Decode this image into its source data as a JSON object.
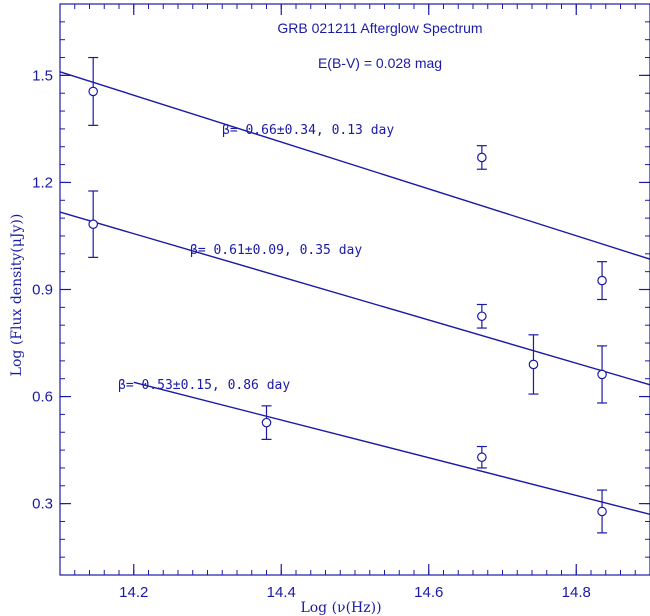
{
  "chart_data": {
    "type": "scatter",
    "title": "",
    "annotations": [
      "GRB 021211 Afterglow Spectrum",
      "E(B-V) = 0.028 mag"
    ],
    "xlabel": "Log (ν(Hz))",
    "ylabel": "Log (Flux density(μJy))",
    "xlim": [
      14.1,
      14.9
    ],
    "ylim": [
      0.1,
      1.7
    ],
    "x_ticks": [
      "14.2",
      "14.4",
      "14.6",
      "14.8"
    ],
    "y_ticks": [
      "0.3",
      "0.6",
      "0.9",
      "1.2",
      "1.5"
    ],
    "grid": false,
    "series": [
      {
        "points": [
          {
            "x": 14.145,
            "y": 1.455,
            "err": 0.095
          },
          {
            "x": 14.672,
            "y": 1.27,
            "err": 0.033
          },
          {
            "x": 14.835,
            "y": 0.925,
            "err": 0.053
          }
        ],
        "fit": {
          "x": [
            14.1,
            14.9
          ],
          "y": [
            1.51,
            0.985
          ]
        },
        "label": "β=  0.66±0.34,  0.13  day"
      },
      {
        "points": [
          {
            "x": 14.145,
            "y": 1.083,
            "err": 0.093
          },
          {
            "x": 14.672,
            "y": 0.825,
            "err": 0.033
          },
          {
            "x": 14.742,
            "y": 0.69,
            "err": 0.083
          },
          {
            "x": 14.835,
            "y": 0.662,
            "err": 0.08
          }
        ],
        "fit": {
          "x": [
            14.1,
            14.9
          ],
          "y": [
            1.117,
            0.633
          ]
        },
        "label": "β=  0.61±0.09,  0.35  day"
      },
      {
        "points": [
          {
            "x": 14.38,
            "y": 0.527,
            "err": 0.047
          },
          {
            "x": 14.672,
            "y": 0.43,
            "err": 0.03
          },
          {
            "x": 14.835,
            "y": 0.278,
            "err": 0.06
          }
        ],
        "fit": {
          "x": [
            14.2,
            14.9
          ],
          "y": [
            0.64,
            0.27
          ]
        },
        "label": "β=  0.53±0.15,  0.86  day"
      }
    ]
  }
}
